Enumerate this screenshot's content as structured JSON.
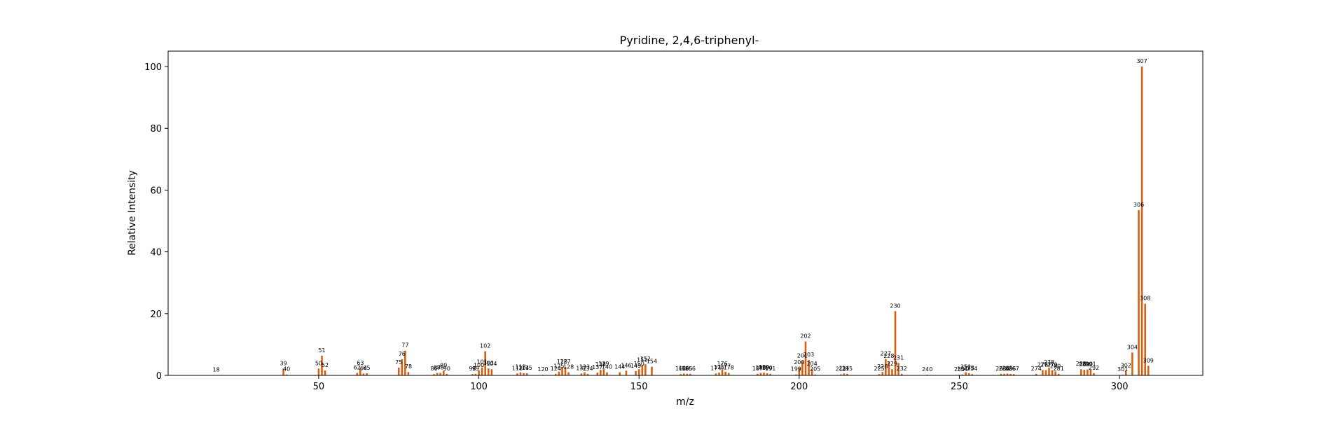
{
  "chart_data": {
    "type": "bar",
    "title": "Pyridine, 2,4,6-triphenyl-",
    "xlabel": "m/z",
    "ylabel": "Relative Intensity",
    "xlim": [
      3,
      326
    ],
    "ylim": [
      0,
      105
    ],
    "xticks": [
      50,
      100,
      150,
      200,
      250,
      300
    ],
    "yticks": [
      0,
      20,
      40,
      60,
      80,
      100
    ],
    "grid": false,
    "bar_color": "#d95f0e",
    "x": [
      18,
      39,
      40,
      50,
      51,
      52,
      62,
      63,
      64,
      65,
      75,
      76,
      77,
      78,
      86,
      87,
      88,
      89,
      90,
      98,
      99,
      100,
      101,
      102,
      103,
      104,
      112,
      113,
      114,
      115,
      120,
      124,
      125,
      126,
      127,
      128,
      132,
      133,
      134,
      137,
      138,
      139,
      140,
      144,
      146,
      149,
      150,
      151,
      152,
      154,
      163,
      164,
      165,
      166,
      174,
      175,
      176,
      177,
      178,
      187,
      188,
      189,
      190,
      191,
      199,
      200,
      201,
      202,
      203,
      204,
      205,
      213,
      214,
      215,
      225,
      226,
      227,
      228,
      229,
      230,
      231,
      232,
      240,
      250,
      251,
      252,
      253,
      254,
      263,
      264,
      265,
      266,
      267,
      274,
      276,
      277,
      278,
      279,
      280,
      281,
      288,
      289,
      290,
      291,
      292,
      301,
      302,
      304,
      306,
      307,
      308,
      309
    ],
    "values": [
      0.1,
      2.2,
      0.3,
      2.2,
      6.4,
      1.6,
      0.8,
      2.3,
      0.6,
      0.7,
      2.5,
      5.2,
      8.0,
      1.1,
      0.4,
      0.8,
      0.8,
      1.5,
      0.5,
      0.4,
      0.5,
      1.6,
      2.6,
      7.8,
      2.3,
      2.0,
      0.6,
      1.0,
      0.7,
      0.7,
      0.2,
      0.5,
      1.2,
      2.7,
      2.7,
      1.0,
      0.6,
      1.0,
      0.5,
      0.9,
      1.8,
      2.0,
      1.0,
      1.0,
      1.5,
      1.4,
      2.0,
      3.3,
      3.6,
      2.8,
      0.4,
      0.6,
      0.5,
      0.5,
      0.6,
      0.9,
      2.0,
      1.2,
      0.8,
      0.5,
      0.8,
      0.9,
      0.7,
      0.5,
      0.3,
      2.5,
      4.7,
      11.0,
      5.0,
      2.0,
      0.3,
      0.3,
      0.6,
      0.5,
      0.4,
      1.1,
      5.3,
      4.5,
      2.0,
      20.8,
      4.0,
      0.5,
      0.2,
      0.2,
      0.3,
      1.0,
      0.7,
      0.4,
      0.5,
      0.5,
      0.6,
      0.5,
      0.4,
      0.5,
      1.7,
      1.7,
      2.5,
      1.7,
      1.3,
      0.5,
      2.0,
      1.8,
      1.9,
      1.9,
      0.7,
      0.2,
      1.5,
      7.4,
      53.5,
      100.0,
      23.2,
      3.1
    ]
  }
}
